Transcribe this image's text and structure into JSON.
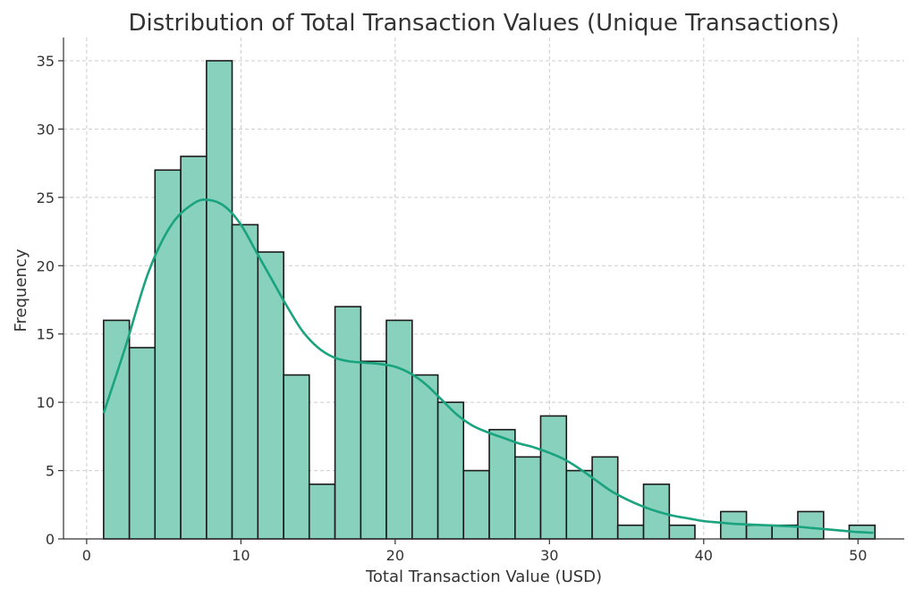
{
  "chart_data": {
    "type": "bar",
    "title": "Distribution of Total Transaction Values (Unique Transactions)",
    "xlabel": "Total Transaction Value (USD)",
    "ylabel": "Frequency",
    "xlim": [
      -1.5,
      53
    ],
    "ylim": [
      0,
      36.7
    ],
    "x_ticks": [
      0,
      10,
      20,
      30,
      40,
      50
    ],
    "y_ticks": [
      0,
      5,
      10,
      15,
      20,
      25,
      30,
      35
    ],
    "grid": true,
    "colors": {
      "bar_fill": "#88d1bc",
      "bar_edge": "#1a1a1a",
      "kde": "#1aa37f",
      "grid": "#cccccc"
    },
    "bin_edges": [
      1.1,
      2.77,
      4.43,
      6.1,
      7.77,
      9.43,
      11.1,
      12.77,
      14.43,
      16.1,
      17.77,
      19.43,
      21.1,
      22.77,
      24.43,
      26.1,
      27.77,
      29.43,
      31.1,
      32.77,
      34.43,
      36.1,
      37.77,
      39.43,
      41.1,
      42.77,
      44.43,
      46.1,
      47.77,
      49.43,
      51.1
    ],
    "values": [
      16,
      14,
      27,
      28,
      35,
      23,
      21,
      12,
      4,
      17,
      13,
      16,
      12,
      10,
      5,
      8,
      6,
      9,
      5,
      6,
      1,
      4,
      1,
      0,
      2,
      1,
      1,
      2,
      0,
      1
    ],
    "kde": {
      "x": [
        1.1,
        2.5,
        4,
        5.5,
        7,
        8,
        9,
        10,
        11,
        12,
        13,
        14,
        15,
        16,
        17,
        18,
        19,
        20,
        21,
        22,
        23,
        24,
        25,
        26,
        27,
        28,
        29,
        30,
        31,
        32,
        33,
        34,
        35,
        36,
        37,
        38,
        39,
        40,
        41,
        42,
        43,
        44,
        45,
        46,
        47,
        48,
        49,
        50,
        51
      ],
      "y": [
        9.2,
        14,
        19.5,
        23,
        24.6,
        24.8,
        24.3,
        23,
        21,
        19,
        17,
        15.2,
        14,
        13.3,
        13,
        12.9,
        12.8,
        12.6,
        12.1,
        11.3,
        10.2,
        9.1,
        8.3,
        7.8,
        7.4,
        7,
        6.7,
        6.3,
        5.8,
        5.1,
        4.3,
        3.5,
        2.9,
        2.4,
        2.0,
        1.7,
        1.5,
        1.3,
        1.2,
        1.1,
        1.05,
        1.0,
        0.95,
        0.9,
        0.8,
        0.7,
        0.6,
        0.5,
        0.45
      ]
    }
  }
}
